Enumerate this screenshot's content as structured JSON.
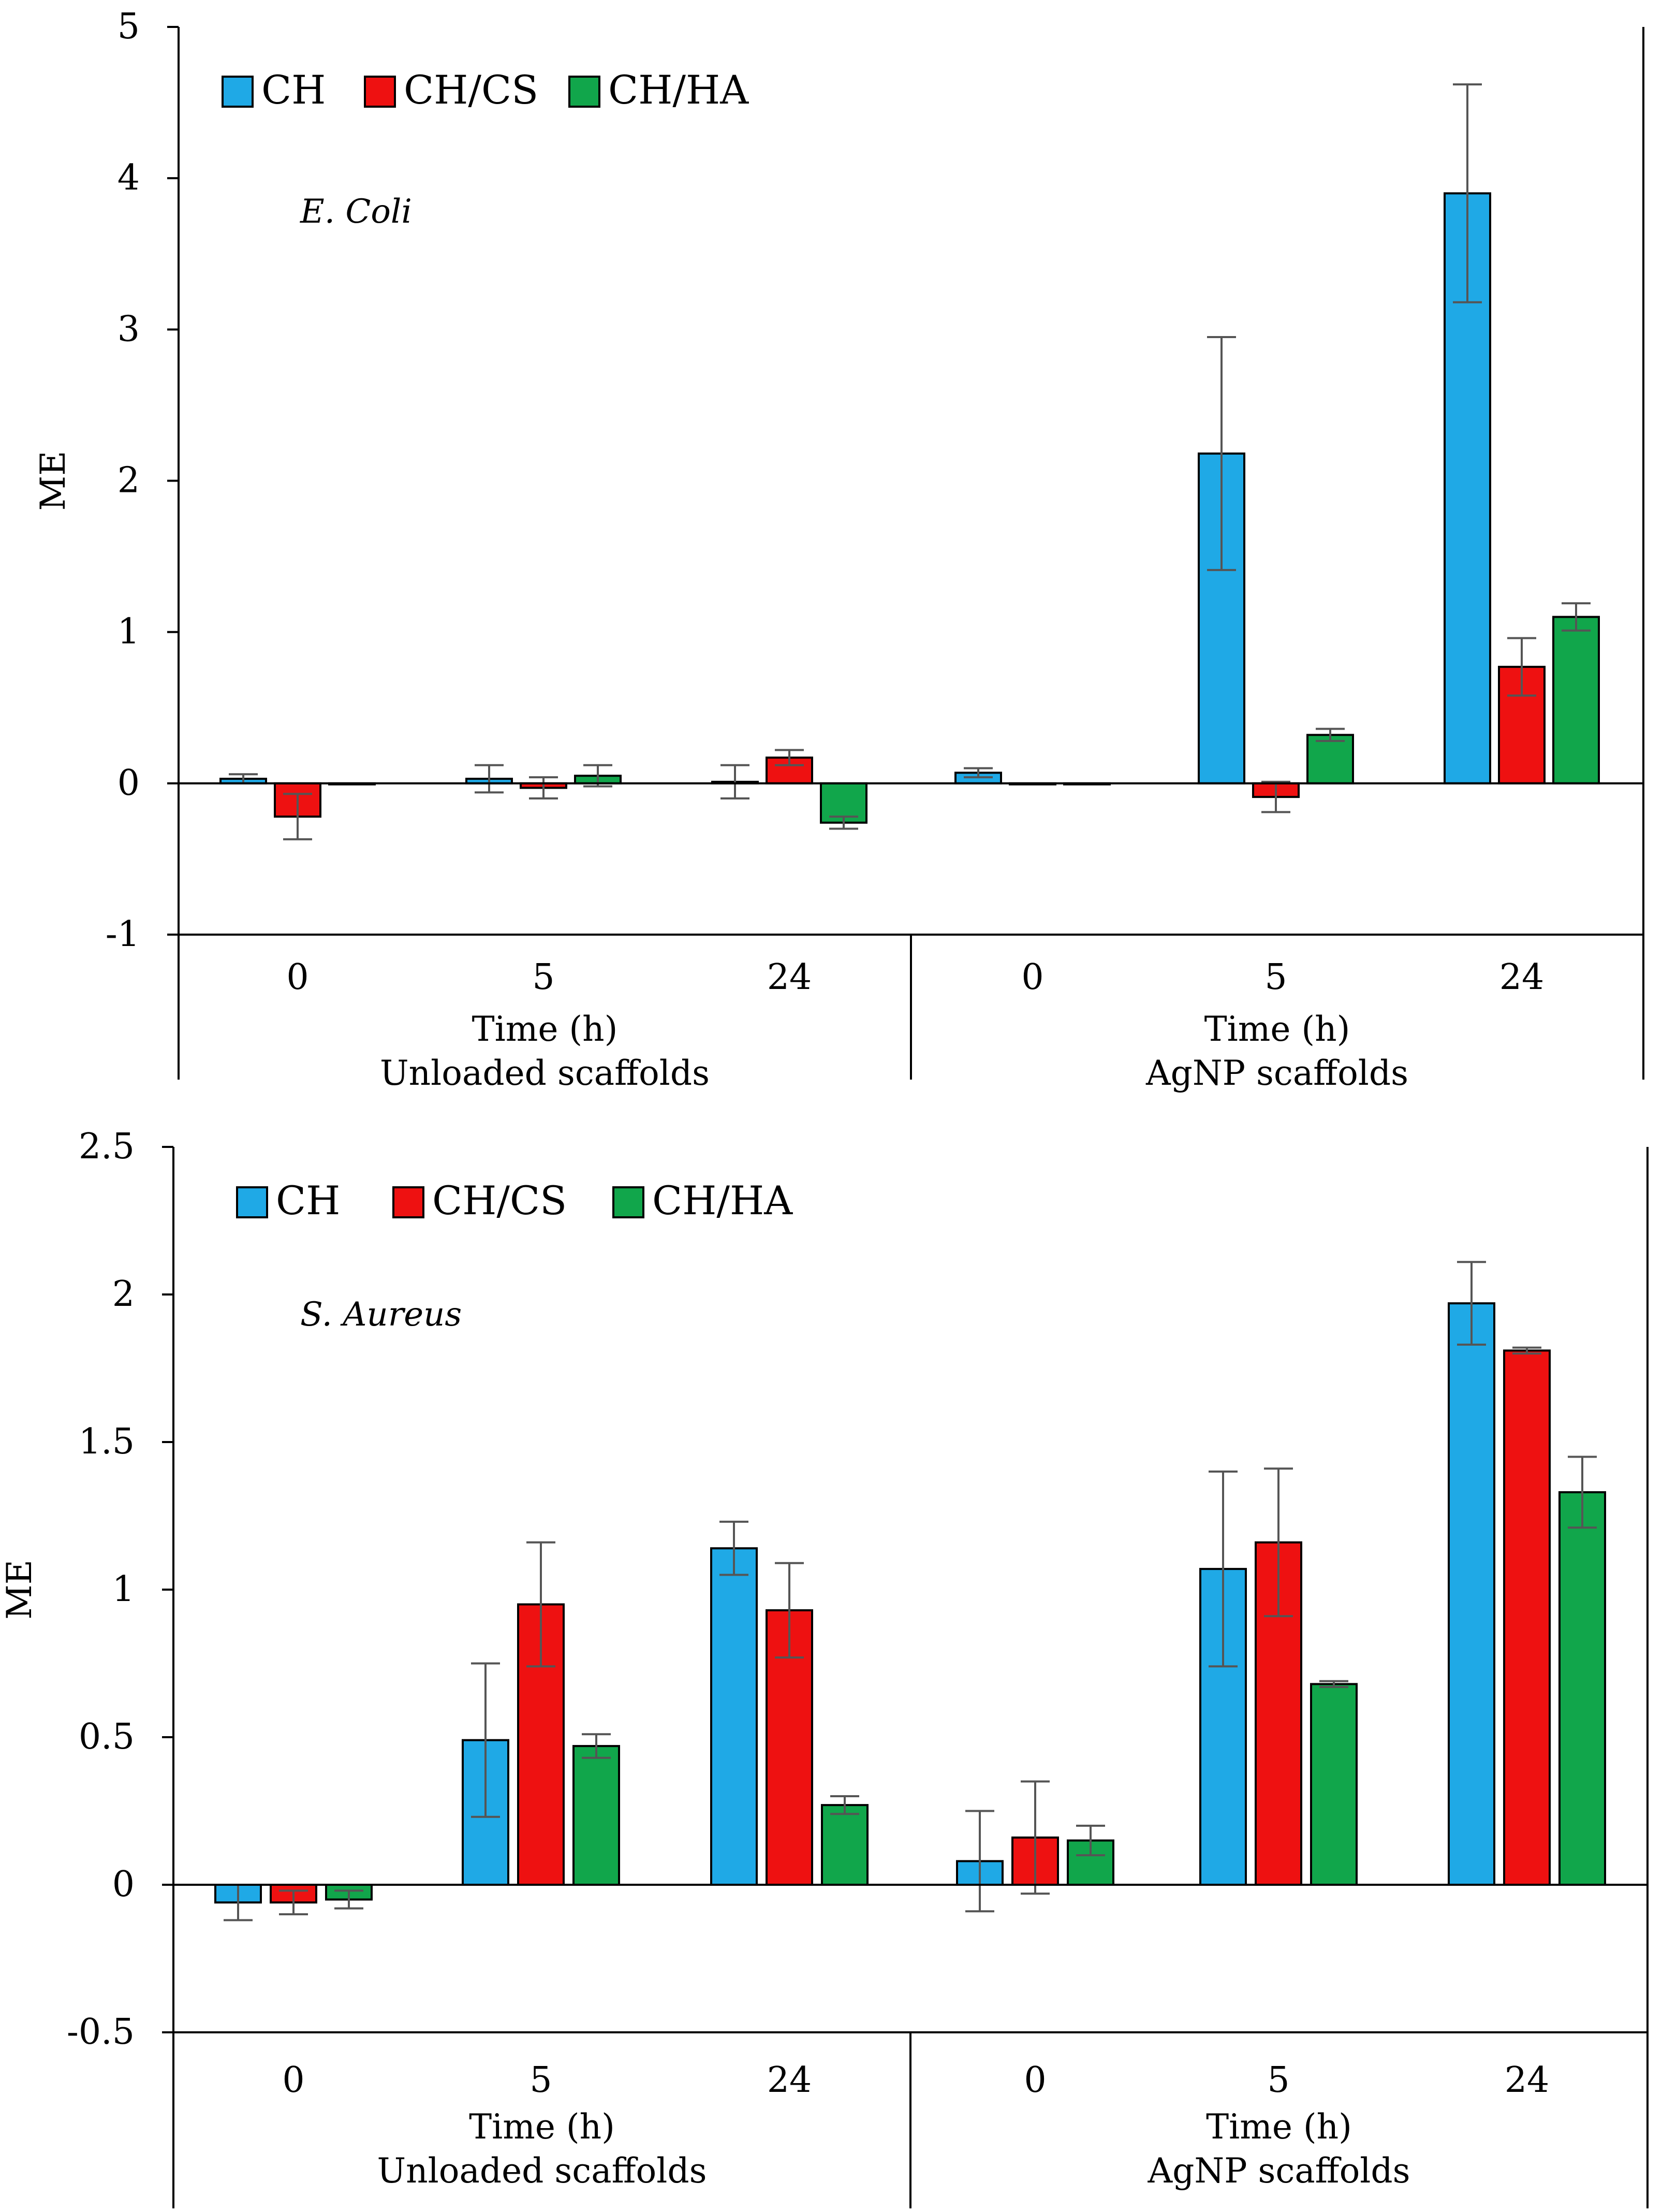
{
  "colors": {
    "CH": "#1fa9e6",
    "CH/CS": "#ee1111",
    "CH/HA": "#11a64b",
    "error_bar": "#555555"
  },
  "chart_data": [
    {
      "type": "bar",
      "annotation": "E. Coli",
      "ylabel": "ME",
      "ylim": [
        -1,
        5
      ],
      "yticks": [
        "5",
        "4",
        "3",
        "2",
        "1",
        "0",
        "-1"
      ],
      "categories": [
        "0",
        "5",
        "24",
        "0",
        "5",
        "24"
      ],
      "time_labels": [
        "Time (h)",
        "Time (h)"
      ],
      "groups": [
        "Unloaded scaffolds",
        "AgNP scaffolds"
      ],
      "legend_position": "top-left",
      "series": [
        {
          "name": "CH",
          "values": [
            0.03,
            0.03,
            0.01,
            0.07,
            2.18,
            3.9
          ],
          "errors": [
            0.03,
            0.09,
            0.11,
            0.03,
            0.77,
            0.72
          ]
        },
        {
          "name": "CH/CS",
          "values": [
            -0.22,
            -0.03,
            0.17,
            0.0,
            -0.09,
            0.77
          ],
          "errors": [
            0.15,
            0.07,
            0.05,
            0.0,
            0.1,
            0.19
          ]
        },
        {
          "name": "CH/HA",
          "values": [
            0.0,
            0.05,
            -0.26,
            0.0,
            0.32,
            1.1
          ],
          "errors": [
            0.0,
            0.07,
            0.04,
            0.0,
            0.04,
            0.09
          ]
        }
      ]
    },
    {
      "type": "bar",
      "annotation": "S. Aureus",
      "ylabel": "ME",
      "ylim": [
        -0.5,
        2.5
      ],
      "yticks": [
        "2.5",
        "2",
        "1.5",
        "1",
        "0.5",
        "0",
        "-0.5"
      ],
      "categories": [
        "0",
        "5",
        "24",
        "0",
        "5",
        "24"
      ],
      "time_labels": [
        "Time (h)",
        "Time (h)"
      ],
      "groups": [
        "Unloaded scaffolds",
        "AgNP scaffolds"
      ],
      "legend_position": "top-left",
      "series": [
        {
          "name": "CH",
          "values": [
            -0.06,
            0.49,
            1.14,
            0.08,
            1.07,
            1.97
          ],
          "errors": [
            0.06,
            0.26,
            0.09,
            0.17,
            0.33,
            0.14
          ]
        },
        {
          "name": "CH/CS",
          "values": [
            -0.06,
            0.95,
            0.93,
            0.16,
            1.16,
            1.81
          ],
          "errors": [
            0.04,
            0.21,
            0.16,
            0.19,
            0.25,
            0.01
          ]
        },
        {
          "name": "CH/HA",
          "values": [
            -0.05,
            0.47,
            0.27,
            0.15,
            0.68,
            1.33
          ],
          "errors": [
            0.03,
            0.04,
            0.03,
            0.05,
            0.01,
            0.12
          ]
        }
      ]
    }
  ]
}
